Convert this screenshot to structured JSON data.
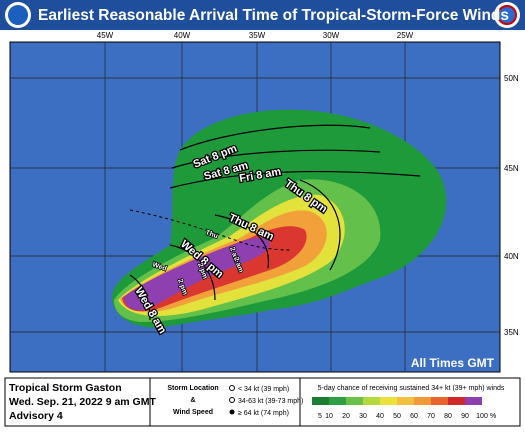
{
  "header": {
    "title": "Earliest Reasonable Arrival Time of Tropical-Storm-Force Winds"
  },
  "map": {
    "lon_labels": [
      "45W",
      "40W",
      "35W",
      "30W",
      "25W"
    ],
    "lat_labels": [
      "50N",
      "45N",
      "40N",
      "35N"
    ],
    "contour_labels": [
      "Sat 8 pm",
      "Sat 8 am",
      "Fri 8 am",
      "Thu 8 pm",
      "Thu 8 am",
      "Wed 8 pm",
      "Wed 8 am"
    ],
    "track_labels": [
      "Thu",
      "2 am",
      "Wed",
      "2 pm",
      "2 am",
      "2 pm"
    ],
    "note": "All Times GMT"
  },
  "legend": {
    "storm_name": "Tropical Storm Gaston",
    "issued": "Wed. Sep. 21, 2022  9 am GMT",
    "advisory": "Advisory 4",
    "storm_location": "Storm Location",
    "ampersand": "&",
    "wind_speed": "Wind Speed",
    "wind_classes": [
      "< 34 kt (39 mph)",
      "34-63 kt (39-73 mph)",
      "≥ 64 kt (74 mph)"
    ],
    "scale_title": "5-day chance of receiving sustained 34+ kt (39+ mph) winds",
    "scale": [
      5,
      10,
      20,
      30,
      40,
      50,
      60,
      70,
      80,
      90,
      100
    ],
    "percent": "%"
  }
}
